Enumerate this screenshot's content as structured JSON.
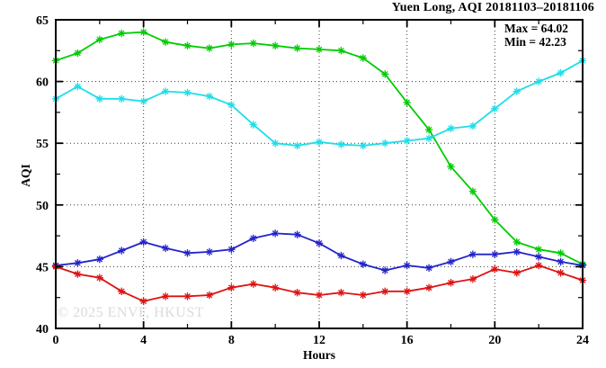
{
  "chart_data": {
    "type": "line",
    "title": "Yuen Long, AQI 20181103–20181106",
    "xlabel": "Hours",
    "ylabel": "AQI",
    "xlim": [
      0,
      24
    ],
    "ylim": [
      40,
      65
    ],
    "grid": true,
    "legend_position": "none",
    "x_major_ticks": [
      0,
      4,
      8,
      12,
      16,
      20,
      24
    ],
    "x_minor_ticks": [
      2,
      6,
      10,
      14,
      18,
      22
    ],
    "y_major_ticks": [
      40,
      45,
      50,
      55,
      60,
      65
    ],
    "y_minor_ticks": [
      42.5,
      47.5,
      52.5,
      57.5,
      62.5
    ],
    "x": [
      0,
      1,
      2,
      3,
      4,
      5,
      6,
      7,
      8,
      9,
      10,
      11,
      12,
      13,
      14,
      15,
      16,
      17,
      18,
      19,
      20,
      21,
      22,
      23,
      24
    ],
    "series": [
      {
        "name": "series-green",
        "color": "#00cc00",
        "values": [
          61.7,
          62.3,
          63.4,
          63.9,
          64.0,
          63.2,
          62.9,
          62.7,
          63.0,
          63.1,
          62.9,
          62.7,
          62.6,
          62.5,
          61.9,
          60.6,
          58.3,
          56.1,
          53.1,
          51.1,
          48.8,
          47.0,
          46.4,
          46.1,
          45.2
        ]
      },
      {
        "name": "series-cyan",
        "color": "#1edde8",
        "values": [
          58.6,
          59.6,
          58.6,
          58.6,
          58.4,
          59.2,
          59.1,
          58.8,
          58.1,
          56.5,
          55.0,
          54.8,
          55.1,
          54.9,
          54.8,
          55.0,
          55.2,
          55.4,
          56.2,
          56.4,
          57.8,
          59.2,
          60.0,
          60.7,
          61.7
        ]
      },
      {
        "name": "series-blue",
        "color": "#2323cc",
        "values": [
          45.1,
          45.3,
          45.6,
          46.3,
          47.0,
          46.5,
          46.1,
          46.2,
          46.4,
          47.3,
          47.7,
          47.6,
          46.9,
          45.9,
          45.2,
          44.7,
          45.1,
          44.9,
          45.4,
          46.0,
          46.0,
          46.2,
          45.8,
          45.4,
          45.1
        ]
      },
      {
        "name": "series-red",
        "color": "#dd1212",
        "values": [
          45.0,
          44.4,
          44.1,
          43.0,
          42.2,
          42.6,
          42.6,
          42.7,
          43.3,
          43.6,
          43.3,
          42.9,
          42.7,
          42.9,
          42.7,
          43.0,
          43.0,
          43.3,
          43.7,
          44.0,
          44.8,
          44.5,
          45.1,
          44.5,
          43.9
        ]
      }
    ],
    "annotations": {
      "max_label": "Max = 64.02",
      "min_label": "Min = 42.23"
    }
  },
  "watermark": "© 2025  ENVF, HKUST"
}
